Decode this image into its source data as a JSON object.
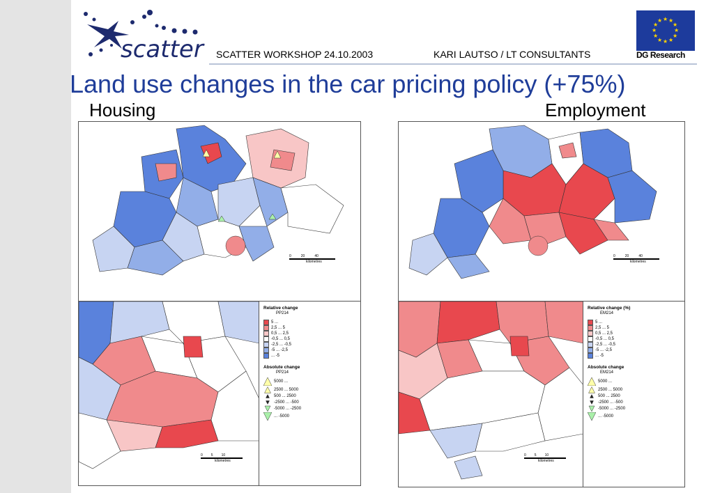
{
  "header": {
    "logo_text": "scatter",
    "workshop": "SCATTER  WORKSHOP  24.10.2003",
    "author": "KARI LAUTSO / LT CONSULTANTS",
    "dg_label": "DG Research"
  },
  "title": "Land use changes in the car pricing policy (+75%)",
  "panels": {
    "housing": {
      "heading": "Housing",
      "legend_title": "Relative change",
      "legend_code": "PP214",
      "relative_items": [
        "5  ...",
        "2,5  ...  5",
        "0,5  ...  2,5",
        "-0,5  ...  0,5",
        "-2,5  ...  -0,5",
        "-5  ...  -2,5",
        "...  -5"
      ],
      "absolute_title": "Absolute change",
      "absolute_code": "PP214",
      "absolute_items": [
        "5000 ...",
        "2500 ...  5000",
        "500 ...  2500",
        "-2500 ...  -500",
        "-5000 ...  -2500",
        "...  -5000"
      ],
      "scale_main": [
        "0",
        "20",
        "40"
      ],
      "scale_main_unit": "kilometres",
      "scale_inset": [
        "0",
        "5",
        "10"
      ],
      "scale_inset_unit": "kilometres"
    },
    "employment": {
      "heading": "Employment",
      "legend_title": "Relative change (%)",
      "legend_code": "EM214",
      "relative_items": [
        "5  ...",
        "2,5  ...  5",
        "0,5  ...  2,5",
        "-0,5  ...  0,5",
        "-2,5  ...  -0,5",
        "-5  ...  -2,5",
        "...  -5"
      ],
      "absolute_title": "Absolute change",
      "absolute_code": "EM214",
      "absolute_items": [
        "5000 ...",
        "2500 ...  5000",
        "500 ...  2500",
        "-2500 ...  -500",
        "-5000 ...  -2500",
        "...  -5000"
      ],
      "scale_main": [
        "0",
        "20",
        "40"
      ],
      "scale_main_unit": "kilometres",
      "scale_inset": [
        "0",
        "5",
        "10"
      ],
      "scale_inset_unit": "kilometres"
    }
  },
  "legend_colors": [
    "#e8484e",
    "#f08a8c",
    "#f8c6c6",
    "#ffffff",
    "#c7d4f2",
    "#92aee8",
    "#5a82dc"
  ]
}
